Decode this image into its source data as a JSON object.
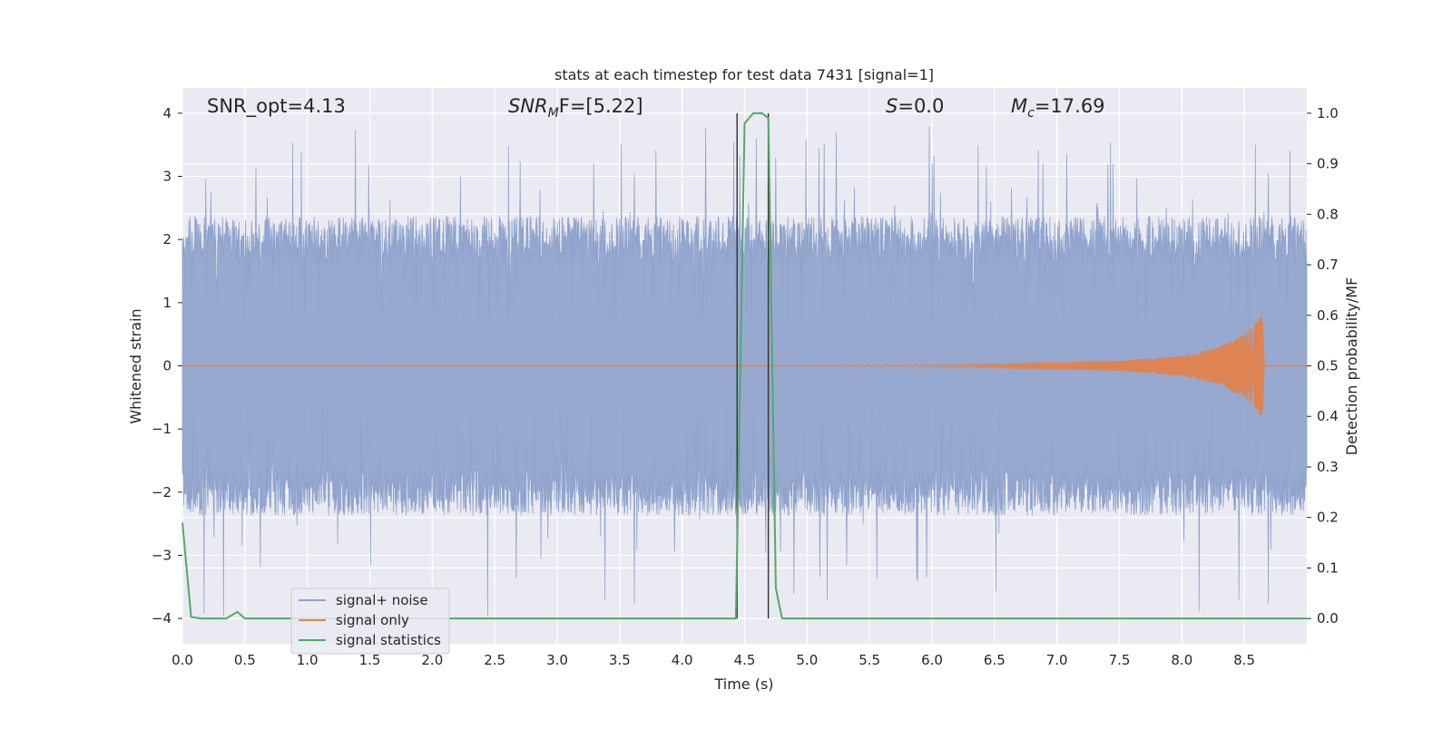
{
  "chart_data": {
    "type": "line",
    "title": "stats at each timestep for test data 7431 [signal=1]",
    "xlabel": "Time (s)",
    "ylabel_left": "Whitened strain",
    "ylabel_right": "Detection probability/MF",
    "xlim": [
      0,
      9.0
    ],
    "ylim_left": [
      -4.4,
      4.4
    ],
    "ylim_right": [
      -0.05,
      1.05
    ],
    "x_ticks": [
      "0.0",
      "0.5",
      "1.0",
      "1.5",
      "2.0",
      "2.5",
      "3.0",
      "3.5",
      "4.0",
      "4.5",
      "5.0",
      "5.5",
      "6.0",
      "6.5",
      "7.0",
      "7.5",
      "8.0",
      "8.5"
    ],
    "y_left_ticks": [
      "−4",
      "−3",
      "−2",
      "−1",
      "0",
      "1",
      "2",
      "3",
      "4"
    ],
    "y_right_ticks": [
      "0.0",
      "0.1",
      "0.2",
      "0.3",
      "0.4",
      "0.5",
      "0.6",
      "0.7",
      "0.8",
      "0.9",
      "1.0"
    ],
    "grid": true,
    "legend_position": "lower-left",
    "annotations": {
      "snr_opt": "SNR_opt=4.13",
      "snr_mf_main": "SNR",
      "snr_mf_sub": "M",
      "snr_mf_tail": "F=[5.22]",
      "s_main": "S",
      "s_tail": "=0.0",
      "mc_main": "M",
      "mc_sub": "c",
      "mc_tail": "=17.69"
    },
    "vertical_lines_x": [
      4.44,
      4.69
    ],
    "series": [
      {
        "name": "signal+ noise",
        "color": "#8fa3cc",
        "axis": "left",
        "description_values": {
          "core_band": [
            -1.6,
            1.6
          ],
          "typical_peak": [
            -2.3,
            2.3
          ],
          "extreme_peaks": [
            -4.0,
            3.8
          ]
        }
      },
      {
        "name": "signal only",
        "color": "#dd8452",
        "axis": "left",
        "envelope_points": [
          [
            4.69,
            0.0
          ],
          [
            6.0,
            0.02
          ],
          [
            7.0,
            0.05
          ],
          [
            7.5,
            0.08
          ],
          [
            8.0,
            0.16
          ],
          [
            8.3,
            0.3
          ],
          [
            8.5,
            0.5
          ],
          [
            8.6,
            0.7
          ],
          [
            8.66,
            0.85
          ]
        ]
      },
      {
        "name": "signal statistics",
        "color": "#55a868",
        "axis": "right",
        "points": [
          [
            0.0,
            0.19
          ],
          [
            0.07,
            0.003
          ],
          [
            0.15,
            0.0
          ],
          [
            0.35,
            0.0
          ],
          [
            0.44,
            0.013
          ],
          [
            0.5,
            0.0
          ],
          [
            1.0,
            0.0
          ],
          [
            2.0,
            0.0
          ],
          [
            3.0,
            0.0
          ],
          [
            4.0,
            0.0
          ],
          [
            4.43,
            0.0
          ],
          [
            4.5,
            0.98
          ],
          [
            4.57,
            1.0
          ],
          [
            4.64,
            1.0
          ],
          [
            4.69,
            0.99
          ],
          [
            4.75,
            0.06
          ],
          [
            4.8,
            0.0
          ],
          [
            5.5,
            0.0
          ],
          [
            6.5,
            0.0
          ],
          [
            7.5,
            0.0
          ],
          [
            8.5,
            0.0
          ],
          [
            9.0,
            0.0
          ]
        ]
      }
    ]
  }
}
